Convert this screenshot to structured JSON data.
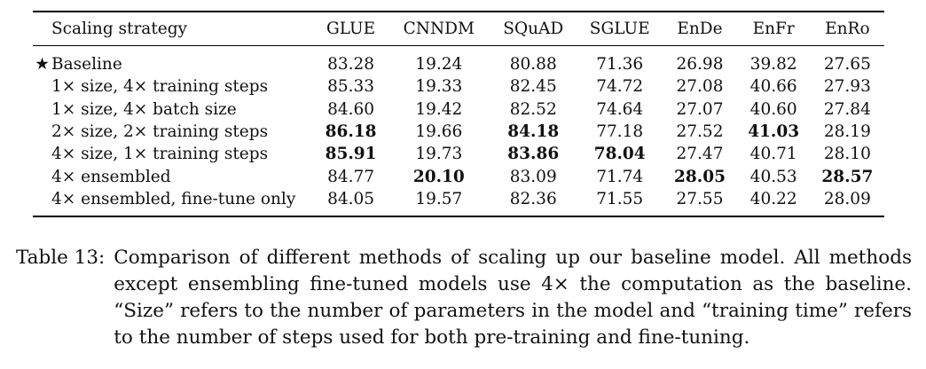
{
  "table": {
    "headers": [
      "Scaling strategy",
      "GLUE",
      "CNNDM",
      "SQuAD",
      "SGLUE",
      "EnDe",
      "EnFr",
      "EnRo"
    ],
    "rows": [
      {
        "star": "★",
        "name": "Baseline",
        "values": [
          "83.28",
          "19.24",
          "80.88",
          "71.36",
          "26.98",
          "39.82",
          "27.65"
        ],
        "bold": [
          false,
          false,
          false,
          false,
          false,
          false,
          false
        ]
      },
      {
        "star": "",
        "name": "1× size, 4× training steps",
        "values": [
          "85.33",
          "19.33",
          "82.45",
          "74.72",
          "27.08",
          "40.66",
          "27.93"
        ],
        "bold": [
          false,
          false,
          false,
          false,
          false,
          false,
          false
        ]
      },
      {
        "star": "",
        "name": "1× size, 4× batch size",
        "values": [
          "84.60",
          "19.42",
          "82.52",
          "74.64",
          "27.07",
          "40.60",
          "27.84"
        ],
        "bold": [
          false,
          false,
          false,
          false,
          false,
          false,
          false
        ]
      },
      {
        "star": "",
        "name": "2× size, 2× training steps",
        "values": [
          "86.18",
          "19.66",
          "84.18",
          "77.18",
          "27.52",
          "41.03",
          "28.19"
        ],
        "bold": [
          true,
          false,
          true,
          false,
          false,
          true,
          false
        ]
      },
      {
        "star": "",
        "name": "4× size, 1× training steps",
        "values": [
          "85.91",
          "19.73",
          "83.86",
          "78.04",
          "27.47",
          "40.71",
          "28.10"
        ],
        "bold": [
          true,
          false,
          true,
          true,
          false,
          false,
          false
        ]
      },
      {
        "star": "",
        "name": "4× ensembled",
        "values": [
          "84.77",
          "20.10",
          "83.09",
          "71.74",
          "28.05",
          "40.53",
          "28.57"
        ],
        "bold": [
          false,
          true,
          false,
          false,
          true,
          false,
          true
        ]
      },
      {
        "star": "",
        "name": "4× ensembled, fine-tune only",
        "values": [
          "84.05",
          "19.57",
          "82.36",
          "71.55",
          "27.55",
          "40.22",
          "28.09"
        ],
        "bold": [
          false,
          false,
          false,
          false,
          false,
          false,
          false
        ]
      }
    ]
  },
  "caption": {
    "label": "Table 13:",
    "text": "Comparison of different methods of scaling up our baseline model. All methods except ensembling fine-tuned models use 4× the computation as the baseline. “Size” refers to the number of parameters in the model and “training time” refers to the number of steps used for both pre-training and fine-tuning."
  }
}
